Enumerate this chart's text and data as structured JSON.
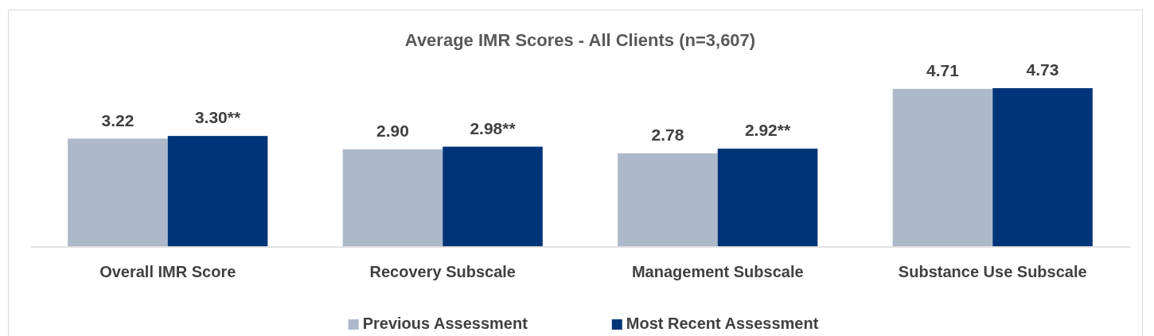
{
  "chart_data": {
    "type": "bar",
    "title": "Average IMR Scores - All Clients (n=3,607)",
    "categories": [
      "Overall IMR Score",
      "Recovery Subscale",
      "Management Subscale",
      "Substance Use Subscale"
    ],
    "series": [
      {
        "name": "Previous Assessment",
        "color": "#adb9ca",
        "values": [
          3.22,
          2.9,
          2.78,
          4.71
        ],
        "value_labels": [
          "3.22",
          "2.90",
          "2.78",
          "4.71"
        ]
      },
      {
        "name": "Most Recent Assessment",
        "color": "#003478",
        "values": [
          3.3,
          2.98,
          2.92,
          4.73
        ],
        "value_labels": [
          "3.30**",
          "2.98**",
          "2.92**",
          "4.73"
        ]
      }
    ],
    "legend": "bottom"
  }
}
